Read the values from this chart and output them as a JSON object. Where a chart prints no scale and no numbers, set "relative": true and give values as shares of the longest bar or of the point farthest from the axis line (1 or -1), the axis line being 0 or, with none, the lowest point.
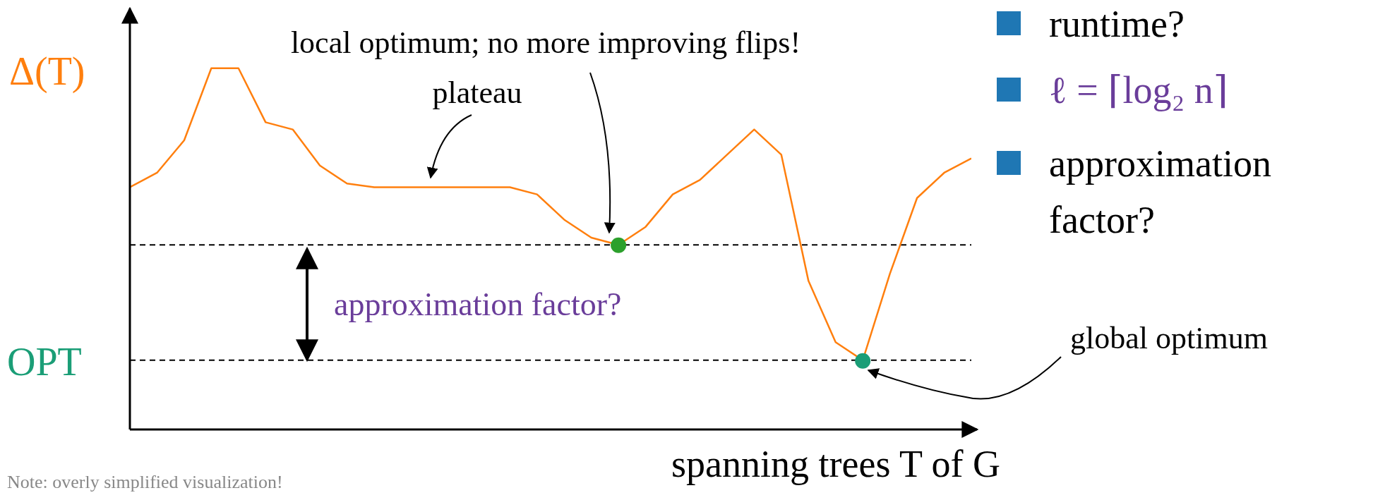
{
  "chart_data": {
    "type": "line",
    "relative": true,
    "ylabel": "Δ(T)",
    "xlabel": "spanning trees T of G",
    "categories": [
      null,
      null,
      null,
      null,
      null,
      null,
      null,
      null,
      null,
      null,
      null,
      null,
      null,
      null,
      null,
      null,
      null,
      null,
      null,
      null,
      null,
      null,
      null,
      null,
      null,
      null,
      null,
      null,
      null,
      null,
      null,
      null
    ],
    "series": [
      {
        "type": "line",
        "color": "#ff7f0e",
        "values": [
          0.67,
          0.71,
          0.8,
          1,
          1,
          0.85,
          0.83,
          0.73,
          0.68,
          0.67,
          0.67,
          0.67,
          0.67,
          0.67,
          0.67,
          0.65,
          0.58,
          0.53,
          0.51,
          0.56,
          0.65,
          0.69,
          0.76,
          0.83,
          0.76,
          0.41,
          0.24,
          0.19,
          0.43,
          0.64,
          0.71,
          0.75
        ]
      }
    ],
    "ref_lines": [
      {
        "axis": "y",
        "value": 0.51,
        "color": "#000000",
        "line_style": "dashed"
      },
      {
        "axis": "y",
        "value": 0.19,
        "label": "OPT",
        "color": "#000000",
        "line_style": "dashed"
      }
    ],
    "annotations": [
      "local optimum; no more improving flips!",
      "plateau",
      "approximation factor?",
      "global optimum",
      "Note: overly simplified visualization!",
      "runtime?",
      "ℓ = ⌈log₂ n⌉",
      "approximation factor?"
    ]
  }
}
